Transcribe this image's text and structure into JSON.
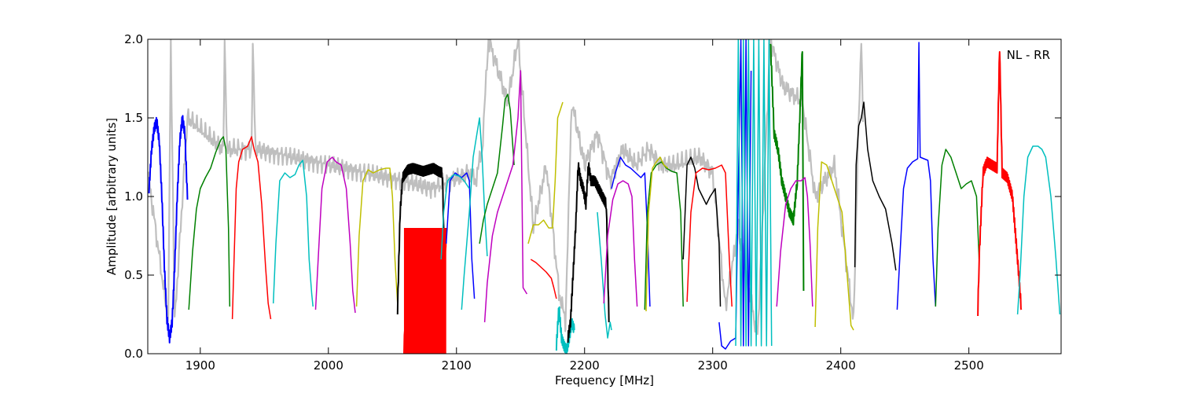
{
  "chart_data": {
    "type": "line",
    "title": "",
    "xlabel": "Frequency [MHz]",
    "ylabel": "Amplitude [arbitrary units]",
    "xlim": [
      1859,
      2572
    ],
    "ylim": [
      0.0,
      2.0
    ],
    "x_ticks": [
      1900,
      2000,
      2100,
      2200,
      2300,
      2400,
      2500
    ],
    "x_tick_labels": [
      "1900",
      "2000",
      "2100",
      "2200",
      "2300",
      "2400",
      "2500"
    ],
    "y_ticks": [
      0.0,
      0.5,
      1.0,
      1.5,
      2.0
    ],
    "y_tick_labels": [
      "0.0",
      "0.5",
      "1.0",
      "1.5",
      "2.0"
    ],
    "annotation": "NL - RR",
    "grid": false,
    "legend": "none",
    "colors": {
      "reference": "#bfbfbf",
      "b": "#0000ff",
      "g": "#008000",
      "r": "#ff0000",
      "c": "#00bfbf",
      "m": "#bf00bf",
      "y": "#bfbf00",
      "k": "#000000"
    },
    "reference_band": [
      [
        1860,
        1.1
      ],
      [
        1875,
        0.2
      ],
      [
        1877,
        2.0
      ],
      [
        1880,
        0.2
      ],
      [
        1890,
        1.5
      ],
      [
        1918,
        1.3
      ],
      [
        1919,
        1.95
      ],
      [
        1921,
        1.3
      ],
      [
        1940,
        1.3
      ],
      [
        1941,
        2.0
      ],
      [
        1943,
        1.3
      ],
      [
        2058,
        1.1
      ],
      [
        2080,
        1.05
      ],
      [
        2095,
        1.1
      ],
      [
        2110,
        1.15
      ],
      [
        2115,
        1.1
      ],
      [
        2120,
        1.3
      ],
      [
        2125,
        2.0
      ],
      [
        2140,
        1.6
      ],
      [
        2148,
        2.0
      ],
      [
        2160,
        0.8
      ],
      [
        2170,
        1.2
      ],
      [
        2180,
        0.4
      ],
      [
        2185,
        0.2
      ],
      [
        2190,
        1.6
      ],
      [
        2200,
        1.2
      ],
      [
        2210,
        1.4
      ],
      [
        2220,
        1.1
      ],
      [
        2230,
        1.3
      ],
      [
        2240,
        1.2
      ],
      [
        2250,
        1.3
      ],
      [
        2260,
        1.2
      ],
      [
        2270,
        1.2
      ],
      [
        2290,
        1.25
      ],
      [
        2300,
        1.15
      ],
      [
        2310,
        0.3
      ],
      [
        2320,
        0.8
      ],
      [
        2335,
        0.1
      ],
      [
        2345,
        2.0
      ],
      [
        2355,
        1.7
      ],
      [
        2370,
        1.6
      ],
      [
        2380,
        1.0
      ],
      [
        2395,
        1.2
      ],
      [
        2410,
        0.2
      ],
      [
        2414,
        1.5
      ],
      [
        2416,
        2.0
      ],
      [
        2418,
        1.2
      ]
    ],
    "series": [
      {
        "color": "b",
        "x": [
          1860,
          1862,
          1864,
          1866,
          1868,
          1870,
          1872,
          1874,
          1876,
          1878,
          1880,
          1882,
          1884,
          1886,
          1888,
          1890
        ],
        "y": [
          1.05,
          1.3,
          1.43,
          1.48,
          1.35,
          1.0,
          0.55,
          0.22,
          0.1,
          0.2,
          0.55,
          1.0,
          1.35,
          1.5,
          1.4,
          0.98
        ],
        "noisy": true
      },
      {
        "color": "g",
        "x": [
          1891,
          1894,
          1897,
          1900,
          1904,
          1908,
          1912,
          1916,
          1918,
          1920,
          1922,
          1923
        ],
        "y": [
          0.28,
          0.65,
          0.92,
          1.05,
          1.12,
          1.18,
          1.28,
          1.36,
          1.38,
          1.3,
          0.8,
          0.3
        ]
      },
      {
        "color": "r",
        "x": [
          1925,
          1926,
          1928,
          1930,
          1933,
          1937,
          1940,
          1942,
          1945,
          1948,
          1951,
          1953,
          1955
        ],
        "y": [
          0.22,
          0.5,
          1.05,
          1.22,
          1.3,
          1.32,
          1.38,
          1.3,
          1.22,
          0.95,
          0.55,
          0.32,
          0.22
        ]
      },
      {
        "color": "c",
        "x": [
          1957,
          1959,
          1962,
          1966,
          1970,
          1974,
          1977,
          1980,
          1983,
          1985,
          1987,
          1988
        ],
        "y": [
          0.32,
          0.7,
          1.1,
          1.15,
          1.12,
          1.14,
          1.2,
          1.23,
          1.0,
          0.6,
          0.38,
          0.3
        ]
      },
      {
        "color": "m",
        "x": [
          1990,
          1992,
          1995,
          1999,
          2003,
          2006,
          2010,
          2014,
          2017,
          2019,
          2021
        ],
        "y": [
          0.28,
          0.6,
          1.05,
          1.22,
          1.25,
          1.22,
          1.2,
          1.05,
          0.7,
          0.4,
          0.26
        ]
      },
      {
        "color": "y",
        "x": [
          2022,
          2024,
          2027,
          2031,
          2035,
          2040,
          2045,
          2048,
          2050,
          2052,
          2054
        ],
        "y": [
          0.3,
          0.75,
          1.1,
          1.17,
          1.15,
          1.17,
          1.18,
          1.18,
          1.0,
          0.6,
          0.32
        ]
      },
      {
        "color": "k",
        "x": [
          2054,
          2056,
          2058,
          2062,
          2066,
          2070,
          2074,
          2078,
          2082,
          2086,
          2089,
          2090
        ],
        "y": [
          0.28,
          0.9,
          1.12,
          1.17,
          1.18,
          1.17,
          1.16,
          1.17,
          1.18,
          1.16,
          1.15,
          0.8
        ],
        "noisy": true
      },
      {
        "color": "r",
        "x": [
          2059,
          2062,
          2065,
          2068,
          2071,
          2074,
          2077,
          2080,
          2083,
          2086,
          2089,
          2092
        ],
        "y": [
          0.0,
          0.8,
          0.0,
          0.8,
          0.0,
          0.8,
          0.0,
          0.8,
          0.0,
          0.8,
          0.0,
          0.8
        ],
        "noisy": true,
        "fill": true
      },
      {
        "color": "b",
        "x": [
          2092,
          2095,
          2099,
          2104,
          2108,
          2110,
          2112,
          2114
        ],
        "y": [
          0.7,
          1.1,
          1.15,
          1.12,
          1.15,
          1.1,
          0.6,
          0.35
        ]
      },
      {
        "color": "c",
        "x": [
          2088,
          2090,
          2093,
          2098,
          2102,
          2106,
          2110
        ],
        "y": [
          0.6,
          0.9,
          1.1,
          1.14,
          1.13,
          1.1,
          1.05
        ]
      },
      {
        "color": "c",
        "x": [
          2104,
          2106,
          2110,
          2113,
          2116,
          2118,
          2120,
          2122,
          2124
        ],
        "y": [
          0.28,
          0.5,
          0.9,
          1.25,
          1.4,
          1.5,
          1.25,
          0.9,
          0.62
        ]
      },
      {
        "color": "g",
        "x": [
          2118,
          2121,
          2124,
          2128,
          2132,
          2136,
          2138,
          2140,
          2142,
          2145
        ],
        "y": [
          0.7,
          0.85,
          0.95,
          1.05,
          1.15,
          1.45,
          1.62,
          1.65,
          1.55,
          1.2
        ]
      },
      {
        "color": "m",
        "x": [
          2122,
          2124,
          2128,
          2132,
          2136,
          2140,
          2144,
          2148,
          2150,
          2152,
          2155
        ],
        "y": [
          0.2,
          0.45,
          0.75,
          0.9,
          1.0,
          1.1,
          1.2,
          1.5,
          1.8,
          0.42,
          0.38
        ]
      },
      {
        "color": "y",
        "x": [
          2156,
          2160,
          2164,
          2168,
          2172,
          2175,
          2177,
          2179,
          2181,
          2183
        ],
        "y": [
          0.7,
          0.82,
          0.82,
          0.85,
          0.8,
          0.8,
          1.1,
          1.5,
          1.55,
          1.6
        ]
      },
      {
        "color": "r",
        "x": [
          2158,
          2162,
          2166,
          2170,
          2174,
          2176,
          2178
        ],
        "y": [
          0.6,
          0.58,
          0.55,
          0.52,
          0.48,
          0.42,
          0.35
        ]
      },
      {
        "color": "c",
        "x": [
          2178,
          2180,
          2182,
          2184,
          2186,
          2188,
          2190,
          2192
        ],
        "y": [
          0.05,
          0.3,
          0.1,
          0.05,
          0.02,
          0.1,
          0.2,
          0.15
        ],
        "noisy": true
      },
      {
        "color": "k",
        "x": [
          2187,
          2189,
          2191,
          2193,
          2195,
          2197,
          2199,
          2201,
          2203,
          2205,
          2208,
          2211,
          2214,
          2217,
          2219
        ],
        "y": [
          0.1,
          0.2,
          0.5,
          0.8,
          1.2,
          1.1,
          1.05,
          0.95,
          1.2,
          1.1,
          1.1,
          1.05,
          1.0,
          0.95,
          0.2
        ],
        "noisy": true
      },
      {
        "color": "c",
        "x": [
          2210,
          2213,
          2216,
          2218,
          2220,
          2221
        ],
        "y": [
          0.9,
          0.6,
          0.25,
          0.1,
          0.2,
          0.15
        ]
      },
      {
        "color": "b",
        "x": [
          2221,
          2224,
          2228,
          2232,
          2236,
          2240,
          2244,
          2247,
          2249,
          2251
        ],
        "y": [
          1.05,
          1.15,
          1.25,
          1.2,
          1.18,
          1.15,
          1.12,
          1.15,
          0.8,
          0.3
        ]
      },
      {
        "color": "m",
        "x": [
          2215,
          2218,
          2222,
          2226,
          2230,
          2234,
          2237,
          2239,
          2241
        ],
        "y": [
          0.32,
          0.75,
          0.98,
          1.08,
          1.1,
          1.08,
          1.0,
          0.6,
          0.3
        ]
      },
      {
        "color": "g",
        "x": [
          2247,
          2249,
          2252,
          2256,
          2260,
          2264,
          2268,
          2272,
          2275,
          2277
        ],
        "y": [
          0.28,
          0.9,
          1.15,
          1.2,
          1.22,
          1.18,
          1.16,
          1.15,
          0.9,
          0.3
        ]
      },
      {
        "color": "y",
        "x": [
          2248,
          2250,
          2253,
          2256,
          2259,
          2262,
          2265
        ],
        "y": [
          0.27,
          0.9,
          1.18,
          1.22,
          1.25,
          1.2,
          1.18
        ]
      },
      {
        "color": "k",
        "x": [
          2277,
          2280,
          2283,
          2286,
          2289,
          2292,
          2295,
          2298,
          2302,
          2305,
          2306
        ],
        "y": [
          0.6,
          1.2,
          1.25,
          1.18,
          1.05,
          1.0,
          0.95,
          1.0,
          1.05,
          0.7,
          0.3
        ]
      },
      {
        "color": "r",
        "x": [
          2280,
          2283,
          2287,
          2292,
          2297,
          2302,
          2307,
          2310,
          2313,
          2315
        ],
        "y": [
          0.33,
          0.9,
          1.15,
          1.18,
          1.17,
          1.18,
          1.2,
          1.15,
          0.6,
          0.3
        ]
      },
      {
        "color": "b",
        "x": [
          2305,
          2307,
          2310,
          2314,
          2318,
          2322,
          2324,
          2326,
          2328,
          2330
        ],
        "y": [
          0.2,
          0.05,
          0.03,
          0.08,
          0.1,
          2.0,
          0.05,
          2.0,
          0.05,
          1.8
        ]
      },
      {
        "color": "c",
        "x": [
          2318,
          2320,
          2322,
          2324,
          2326,
          2328,
          2330,
          2332,
          2334,
          2336,
          2338,
          2340,
          2342,
          2344,
          2346
        ],
        "y": [
          0.05,
          2.0,
          0.05,
          2.0,
          0.05,
          2.0,
          0.05,
          2.0,
          0.05,
          2.0,
          0.05,
          2.0,
          0.05,
          2.0,
          0.05
        ]
      },
      {
        "color": "g",
        "x": [
          2345,
          2348,
          2351,
          2354,
          2357,
          2360,
          2363,
          2366,
          2368,
          2370,
          2371
        ],
        "y": [
          2.0,
          1.4,
          1.3,
          1.1,
          1.0,
          0.9,
          0.85,
          1.1,
          1.5,
          1.95,
          0.4
        ],
        "noisy": true
      },
      {
        "color": "m",
        "x": [
          2350,
          2353,
          2357,
          2361,
          2365,
          2369,
          2372,
          2374,
          2376,
          2378
        ],
        "y": [
          0.3,
          0.65,
          0.95,
          1.05,
          1.1,
          1.1,
          1.12,
          1.0,
          0.7,
          0.3
        ]
      },
      {
        "color": "y",
        "x": [
          2380,
          2382,
          2385,
          2389,
          2393,
          2397,
          2401,
          2405,
          2408,
          2410
        ],
        "y": [
          0.17,
          0.8,
          1.22,
          1.2,
          1.1,
          1.0,
          0.9,
          0.5,
          0.18,
          0.15
        ]
      },
      {
        "color": "k",
        "x": [
          2411,
          2412,
          2414,
          2416,
          2418,
          2421,
          2425,
          2430,
          2435,
          2440,
          2443
        ],
        "y": [
          0.55,
          1.2,
          1.45,
          1.5,
          1.6,
          1.3,
          1.1,
          1.0,
          0.92,
          0.7,
          0.53
        ]
      },
      {
        "color": "b",
        "x": [
          2444,
          2446,
          2449,
          2452,
          2456,
          2460,
          2461,
          2462,
          2465,
          2468,
          2470,
          2472,
          2474
        ],
        "y": [
          0.28,
          0.6,
          1.05,
          1.18,
          1.22,
          1.24,
          1.98,
          1.25,
          1.24,
          1.23,
          1.1,
          0.6,
          0.3
        ]
      },
      {
        "color": "g",
        "x": [
          2474,
          2476,
          2479,
          2482,
          2486,
          2490,
          2494,
          2498,
          2502,
          2506,
          2508
        ],
        "y": [
          0.3,
          0.8,
          1.2,
          1.3,
          1.25,
          1.15,
          1.05,
          1.08,
          1.1,
          1.0,
          0.6
        ]
      },
      {
        "color": "r",
        "x": [
          2507,
          2508,
          2511,
          2514,
          2518,
          2522,
          2524,
          2526,
          2530,
          2534,
          2538,
          2541
        ],
        "y": [
          0.27,
          0.6,
          1.15,
          1.22,
          1.2,
          1.18,
          1.95,
          1.15,
          1.12,
          1.0,
          0.6,
          0.28
        ],
        "noisy": true
      },
      {
        "color": "c",
        "x": [
          2538,
          2540,
          2543,
          2546,
          2550,
          2554,
          2557,
          2560,
          2564,
          2568,
          2571
        ],
        "y": [
          0.25,
          0.5,
          1.0,
          1.25,
          1.32,
          1.32,
          1.3,
          1.25,
          1.0,
          0.6,
          0.25
        ]
      }
    ]
  }
}
